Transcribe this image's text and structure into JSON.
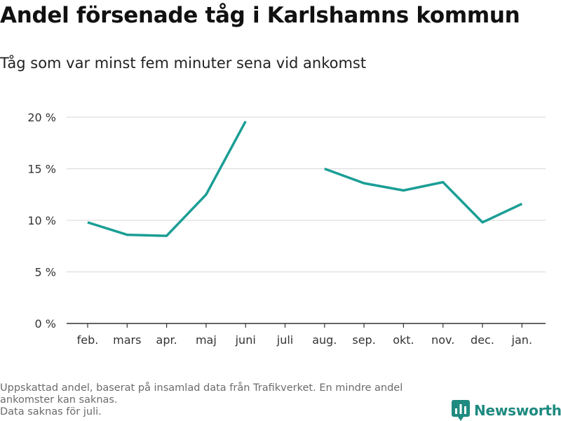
{
  "title": "Andel försenade tåg i Karlshamns kommun",
  "subtitle": "Tåg som var minst fem minuter sena vid ankomst",
  "notes": [
    "Uppskattad andel, baserat på insamlad data från Trafikverket. En mindre andel ankomster kan saknas.",
    "Data saknas för juli."
  ],
  "brand": {
    "name": "Newsworthy",
    "icon": "newsworthy-logo-icon"
  },
  "colors": {
    "line": "#1a9e95",
    "grid": "#dddddd",
    "axis": "#333333",
    "brand": "#1e8a80"
  },
  "chart_data": {
    "type": "line",
    "categories": [
      "feb.",
      "mars",
      "apr.",
      "maj",
      "juni",
      "juli",
      "aug.",
      "sep.",
      "okt.",
      "nov.",
      "dec.",
      "jan."
    ],
    "series": [
      {
        "values": [
          9.8,
          8.6,
          8.5,
          12.5,
          19.6,
          null,
          15.0,
          13.6,
          12.9,
          13.7,
          9.8,
          11.6
        ]
      }
    ],
    "yticks": [
      0,
      5,
      10,
      15,
      20
    ],
    "ytick_labels": [
      "0 %",
      "5 %",
      "10 %",
      "15 %",
      "20 %"
    ],
    "ylim": [
      0,
      20
    ],
    "xlabel": "",
    "ylabel": "",
    "grid": true
  }
}
